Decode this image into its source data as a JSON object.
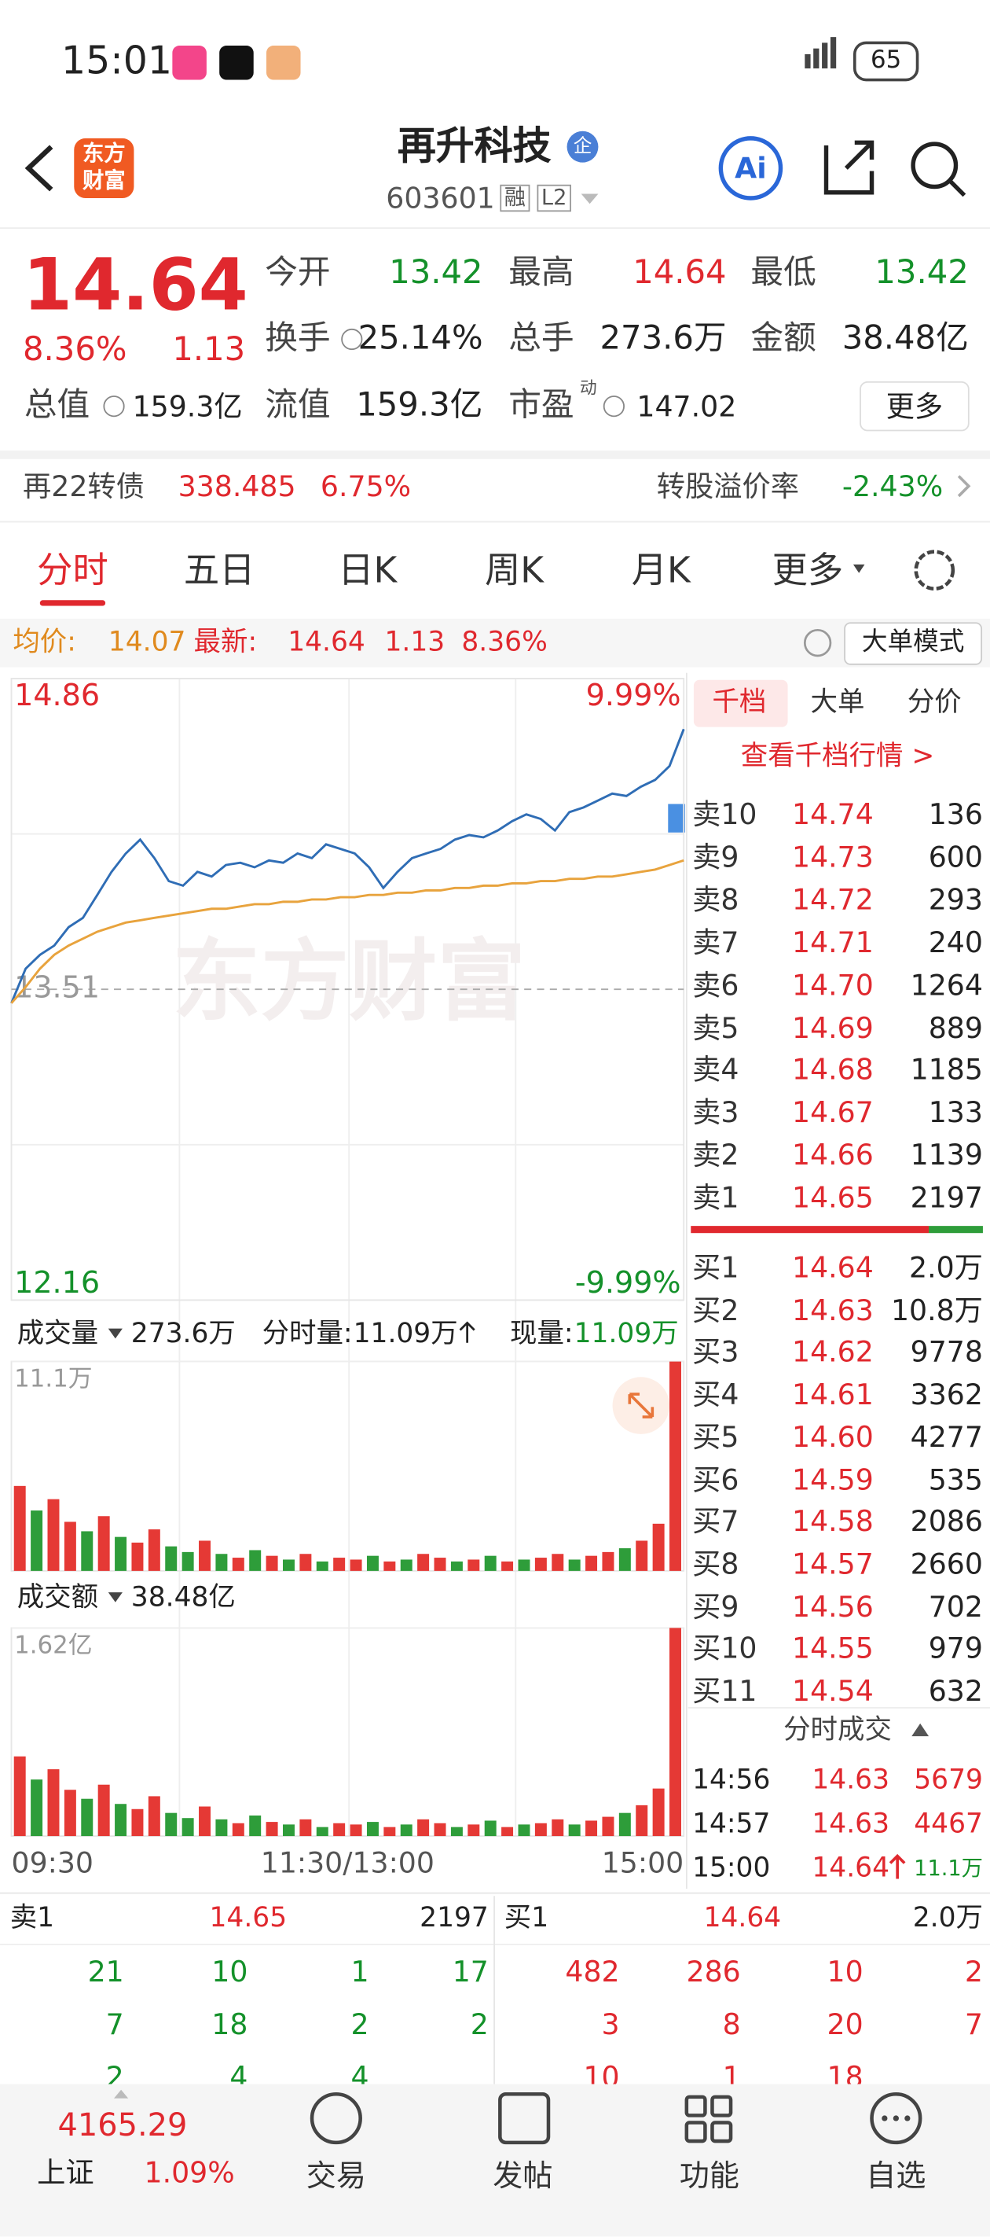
{
  "status": {
    "time": "15:01",
    "battery": "65"
  },
  "header": {
    "logo": [
      "东方",
      "财富"
    ],
    "title": "再升科技",
    "badge": "企",
    "code": "603601",
    "tags": [
      "融",
      "L2"
    ],
    "ai": "Ai"
  },
  "quote": {
    "price": "14.64",
    "pct": "8.36%",
    "change": "1.13",
    "fields": [
      {
        "label": "今开",
        "value": "13.42"
      },
      {
        "label": "最高",
        "value": "14.64"
      },
      {
        "label": "最低",
        "value": "13.42"
      },
      {
        "label": "换手",
        "value": "25.14%"
      },
      {
        "label": "总手",
        "value": "273.6万"
      },
      {
        "label": "金额",
        "value": "38.48亿"
      },
      {
        "label": "总值",
        "value": "159.3亿"
      },
      {
        "label": "流值",
        "value": "159.3亿"
      },
      {
        "label": "市盈",
        "value": "147.02"
      }
    ],
    "pe_sup": "动",
    "more": "更多"
  },
  "bond": {
    "name": "再22转债",
    "price": "338.485",
    "pct": "6.75%",
    "premium_label": "转股溢价率",
    "premium": "-2.43%"
  },
  "tabs": [
    "分时",
    "五日",
    "日K",
    "周K",
    "月K",
    "更多"
  ],
  "info": {
    "avg_label": "均价:",
    "avg": "14.07",
    "latest_label": "最新:",
    "latest": "14.64",
    "change": "1.13",
    "pct": "8.36%",
    "mode": "大单模式"
  },
  "chart_data": [
    {
      "type": "line",
      "ylim": [
        12.16,
        14.86
      ],
      "yticks": [
        14.86,
        13.51,
        12.16
      ],
      "y2lim": [
        -9.99,
        9.99
      ],
      "y2ticks": [
        {
          "value": 9.99,
          "label": "9.99%"
        },
        {
          "value": -9.99,
          "label": "-9.99%"
        }
      ],
      "xticks": [
        "09:30",
        "11:30/13:00",
        "15:00"
      ],
      "watermark": "东方财富",
      "series": [
        {
          "color": "#2f6db5",
          "values": [
            13.45,
            13.6,
            13.66,
            13.7,
            13.78,
            13.82,
            13.92,
            14.02,
            14.1,
            14.16,
            14.08,
            13.98,
            13.96,
            14.02,
            14.0,
            14.05,
            14.06,
            14.04,
            14.07,
            14.06,
            14.1,
            14.08,
            14.14,
            14.12,
            14.1,
            14.04,
            13.95,
            14.02,
            14.08,
            14.1,
            14.12,
            14.16,
            14.18,
            14.17,
            14.2,
            14.24,
            14.27,
            14.25,
            14.2,
            14.28,
            14.3,
            14.33,
            14.36,
            14.35,
            14.39,
            14.42,
            14.48,
            14.64
          ]
        },
        {
          "color": "#e8a33d",
          "values": [
            13.45,
            13.52,
            13.6,
            13.66,
            13.7,
            13.73,
            13.76,
            13.78,
            13.8,
            13.81,
            13.82,
            13.83,
            13.84,
            13.85,
            13.86,
            13.86,
            13.87,
            13.88,
            13.88,
            13.89,
            13.89,
            13.9,
            13.9,
            13.91,
            13.91,
            13.92,
            13.92,
            13.93,
            13.93,
            13.94,
            13.94,
            13.95,
            13.95,
            13.96,
            13.96,
            13.97,
            13.97,
            13.98,
            13.98,
            13.99,
            13.99,
            14.0,
            14.0,
            14.01,
            14.02,
            14.03,
            14.05,
            14.07
          ]
        }
      ]
    },
    {
      "type": "bar",
      "title": "成交量",
      "total": "273.6万",
      "minute_label": "分时量:",
      "minute_value": "11.09万",
      "now_label": "现量:",
      "now_value": "11.09万",
      "ylim": [
        0,
        11.1
      ],
      "yticks": [
        {
          "value": 11.1,
          "label": "11.1万"
        }
      ],
      "values": [
        4.5,
        3.2,
        3.8,
        2.6,
        2.1,
        2.9,
        1.8,
        1.5,
        2.2,
        1.3,
        1.0,
        1.6,
        0.9,
        0.7,
        1.1,
        0.8,
        0.6,
        0.9,
        0.5,
        0.7,
        0.6,
        0.8,
        0.5,
        0.6,
        0.9,
        0.7,
        0.5,
        0.6,
        0.8,
        0.5,
        0.6,
        0.7,
        0.9,
        0.6,
        0.8,
        1.0,
        1.2,
        1.6,
        2.5,
        11.09
      ],
      "colors": [
        "#e53935",
        "#2e9d3a",
        "#e53935",
        "#e53935",
        "#2e9d3a",
        "#e53935",
        "#2e9d3a",
        "#e53935",
        "#e53935",
        "#2e9d3a",
        "#2e9d3a",
        "#e53935",
        "#2e9d3a",
        "#e53935",
        "#2e9d3a",
        "#e53935",
        "#2e9d3a",
        "#e53935",
        "#2e9d3a",
        "#e53935",
        "#e53935",
        "#2e9d3a",
        "#e53935",
        "#2e9d3a",
        "#e53935",
        "#e53935",
        "#2e9d3a",
        "#e53935",
        "#2e9d3a",
        "#e53935",
        "#2e9d3a",
        "#e53935",
        "#e53935",
        "#2e9d3a",
        "#e53935",
        "#e53935",
        "#2e9d3a",
        "#e53935",
        "#e53935",
        "#e53935"
      ]
    },
    {
      "type": "bar",
      "title": "成交额",
      "total": "38.48亿",
      "ylim": [
        0,
        1.62
      ],
      "yticks": [
        {
          "value": 1.62,
          "label": "1.62亿"
        }
      ],
      "values": [
        0.62,
        0.44,
        0.52,
        0.36,
        0.29,
        0.4,
        0.25,
        0.21,
        0.31,
        0.18,
        0.14,
        0.23,
        0.13,
        0.1,
        0.16,
        0.11,
        0.09,
        0.13,
        0.07,
        0.1,
        0.09,
        0.11,
        0.07,
        0.09,
        0.13,
        0.1,
        0.07,
        0.09,
        0.12,
        0.07,
        0.09,
        0.1,
        0.13,
        0.09,
        0.12,
        0.15,
        0.18,
        0.24,
        0.37,
        1.62
      ],
      "colors": [
        "#e53935",
        "#2e9d3a",
        "#e53935",
        "#e53935",
        "#2e9d3a",
        "#e53935",
        "#2e9d3a",
        "#e53935",
        "#e53935",
        "#2e9d3a",
        "#2e9d3a",
        "#e53935",
        "#2e9d3a",
        "#e53935",
        "#2e9d3a",
        "#e53935",
        "#2e9d3a",
        "#e53935",
        "#2e9d3a",
        "#e53935",
        "#e53935",
        "#2e9d3a",
        "#e53935",
        "#2e9d3a",
        "#e53935",
        "#e53935",
        "#2e9d3a",
        "#e53935",
        "#2e9d3a",
        "#e53935",
        "#2e9d3a",
        "#e53935",
        "#e53935",
        "#2e9d3a",
        "#e53935",
        "#e53935",
        "#2e9d3a",
        "#e53935",
        "#e53935",
        "#e53935"
      ]
    }
  ],
  "orderbook": {
    "tabs": [
      "千档",
      "大单",
      "分价"
    ],
    "link": "查看千档行情 >",
    "sell": [
      {
        "label": "卖10",
        "price": "14.74",
        "volume": "136"
      },
      {
        "label": "卖9",
        "price": "14.73",
        "volume": "600"
      },
      {
        "label": "卖8",
        "price": "14.72",
        "volume": "293"
      },
      {
        "label": "卖7",
        "price": "14.71",
        "volume": "240"
      },
      {
        "label": "卖6",
        "price": "14.70",
        "volume": "1264"
      },
      {
        "label": "卖5",
        "price": "14.69",
        "volume": "889"
      },
      {
        "label": "卖4",
        "price": "14.68",
        "volume": "1185"
      },
      {
        "label": "卖3",
        "price": "14.67",
        "volume": "133"
      },
      {
        "label": "卖2",
        "price": "14.66",
        "volume": "1139"
      },
      {
        "label": "卖1",
        "price": "14.65",
        "volume": "2197"
      }
    ],
    "buy": [
      {
        "label": "买1",
        "price": "14.64",
        "volume": "2.0万"
      },
      {
        "label": "买2",
        "price": "14.63",
        "volume": "10.8万"
      },
      {
        "label": "买3",
        "price": "14.62",
        "volume": "9778"
      },
      {
        "label": "买4",
        "price": "14.61",
        "volume": "3362"
      },
      {
        "label": "买5",
        "price": "14.60",
        "volume": "4277"
      },
      {
        "label": "买6",
        "price": "14.59",
        "volume": "535"
      },
      {
        "label": "买7",
        "price": "14.58",
        "volume": "2086"
      },
      {
        "label": "买8",
        "price": "14.57",
        "volume": "2660"
      },
      {
        "label": "买9",
        "price": "14.56",
        "volume": "702"
      },
      {
        "label": "买10",
        "price": "14.55",
        "volume": "979"
      },
      {
        "label": "买11",
        "price": "14.54",
        "volume": "632"
      }
    ],
    "trades_title": "分时成交",
    "trades": [
      {
        "time": "14:56",
        "price": "14.63",
        "volume": "5679"
      },
      {
        "time": "14:57",
        "price": "14.63",
        "volume": "4467"
      },
      {
        "time": "15:00",
        "price": "14.64",
        "volume": "11.1万"
      }
    ]
  },
  "queue": {
    "sell_label": "卖1",
    "sell_price": "14.65",
    "sell_volume": "2197",
    "buy_label": "买1",
    "buy_price": "14.64",
    "buy_volume": "2.0万",
    "sell_rows": [
      [
        "21",
        "10",
        "1",
        "17"
      ],
      [
        "7",
        "18",
        "2",
        "2"
      ],
      [
        "2",
        "4",
        "4"
      ]
    ],
    "buy_rows": [
      [
        "482",
        "286",
        "10",
        "2"
      ],
      [
        "3",
        "8",
        "20",
        "7"
      ],
      [
        "10",
        "1",
        "18"
      ]
    ]
  },
  "nav": {
    "index_value": "4165.29",
    "index_name": "上证",
    "index_pct": "1.09%",
    "items": [
      "交易",
      "发帖",
      "功能",
      "自选"
    ]
  }
}
